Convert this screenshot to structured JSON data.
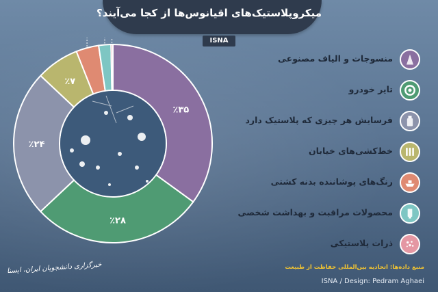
{
  "header": {
    "badge": "ISNA"
  },
  "chart_data": {
    "type": "pie",
    "title": "میکروپلاستیک‌های اقیانوس‌ها از کجا می‌آیند؟",
    "categories": [
      "منسوجات و الیاف مصنوعی",
      "تایر خودرو",
      "فرسایش هر چیزی که پلاستیک دارد",
      "خط‌کشی‌های خیابان",
      "رنگ‌های پوشاننده بدنه کشتی",
      "محصولات مراقبت و بهداشت شخصی",
      "ذرات پلاستیکی"
    ],
    "values": [
      35,
      28,
      24,
      7,
      3.7,
      2,
      0.3
    ],
    "value_labels": [
      "٪۳۵",
      "٪۲۸",
      "٪۲۴",
      "٪۷",
      "٪۳/۷",
      "٪۲",
      "٪۰/۳"
    ],
    "colors": [
      "#8a6fa0",
      "#4f9b73",
      "#8c93ab",
      "#b9b66e",
      "#df8a72",
      "#7ec6c3",
      "#e497a3"
    ],
    "icons": [
      "textile-icon",
      "tire-icon",
      "bottle-icon",
      "road-marking-icon",
      "ship-icon",
      "cosmetic-tube-icon",
      "plastic-particle-icon"
    ]
  },
  "footer": {
    "source": "منبع داده‌ها: اتحادیه بین‌المللی حفاظت از طبیعت",
    "credit": "ISNA / Design: Pedram Aghaei",
    "agency_signature": "خبرگزاری دانشجویان ایران، ایسنا"
  }
}
